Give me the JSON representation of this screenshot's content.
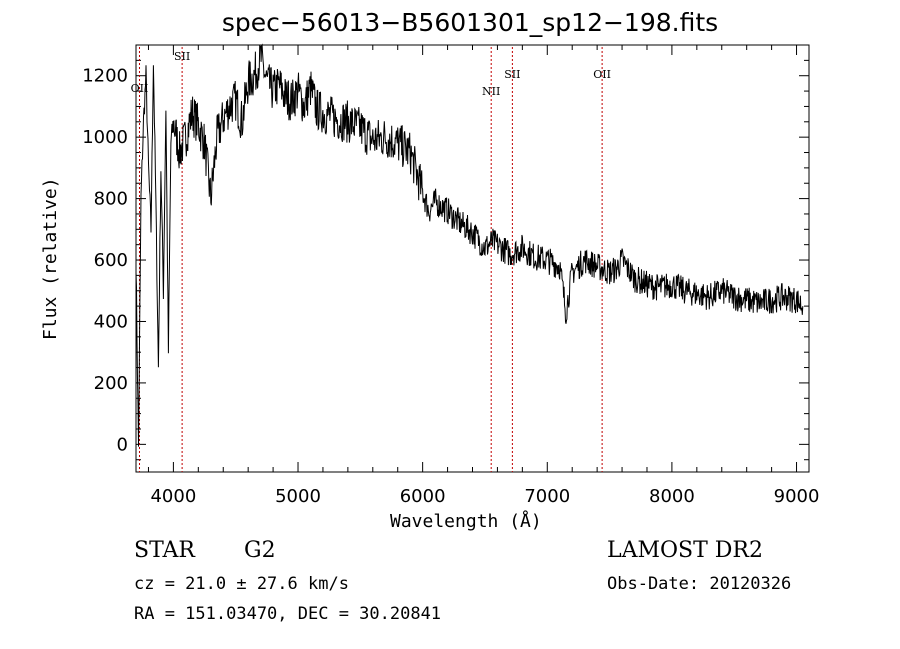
{
  "chart_data": {
    "type": "line",
    "title": "spec−56013−B5601301_sp12−198.fits",
    "xlabel": "Wavelength (Å)",
    "ylabel": "Flux (relative)",
    "xlim": [
      3700,
      9100
    ],
    "ylim": [
      -90,
      1300
    ],
    "xticks": [
      4000,
      5000,
      6000,
      7000,
      8000,
      9000
    ],
    "yticks": [
      0,
      200,
      400,
      600,
      800,
      1000,
      1200
    ],
    "grid": false,
    "series": [
      {
        "x": [
          3700,
          3720,
          3740,
          3760,
          3780,
          3800,
          3820,
          3840,
          3860,
          3880,
          3900,
          3920,
          3940,
          3960,
          3980,
          4000,
          4050,
          4100,
          4150,
          4200,
          4250,
          4300,
          4350,
          4400,
          4450,
          4500,
          4550,
          4600,
          4650,
          4700,
          4750,
          4800,
          4850,
          4900,
          4950,
          5000,
          5050,
          5100,
          5150,
          5200,
          5300,
          5400,
          5500,
          5600,
          5700,
          5800,
          5900,
          6000,
          6050,
          6100,
          6200,
          6300,
          6400,
          6500,
          6560,
          6600,
          6700,
          6800,
          6900,
          7000,
          7100,
          7150,
          7200,
          7300,
          7400,
          7500,
          7550,
          7600,
          7700,
          7800,
          7900,
          8000,
          8100,
          8200,
          8300,
          8400,
          8500,
          8600,
          8700,
          8800,
          8900,
          9000,
          9050
        ],
        "y": [
          600,
          -10,
          800,
          1050,
          1200,
          900,
          700,
          1250,
          780,
          250,
          900,
          500,
          1100,
          300,
          980,
          1050,
          950,
          1000,
          1080,
          1040,
          980,
          800,
          1000,
          1060,
          1100,
          1120,
          1050,
          1180,
          1200,
          1260,
          1180,
          1150,
          1170,
          1130,
          1120,
          1150,
          1100,
          1160,
          1090,
          1080,
          1060,
          1050,
          1030,
          990,
          1000,
          980,
          950,
          820,
          760,
          790,
          760,
          720,
          690,
          640,
          660,
          650,
          620,
          640,
          610,
          600,
          580,
          430,
          560,
          600,
          580,
          560,
          570,
          600,
          540,
          520,
          510,
          520,
          500,
          490,
          480,
          500,
          480,
          470,
          460,
          470,
          480,
          470,
          450
        ]
      }
    ],
    "lines": [
      {
        "label": "OII",
        "x": 3728
      },
      {
        "label": "SII",
        "x": 4070
      },
      {
        "label": "NII",
        "x": 6550
      },
      {
        "label": "SII",
        "x": 6720
      },
      {
        "label": "OII",
        "x": 7440
      }
    ]
  },
  "info": {
    "left_line1_a": "STAR",
    "left_line1_b": "G2",
    "cz": "cz = 21.0 ± 27.6 km/s",
    "radec": "RA = 151.03470, DEC =  30.20841",
    "survey": "LAMOST DR2",
    "obs_date": "Obs-Date: 20120326"
  }
}
